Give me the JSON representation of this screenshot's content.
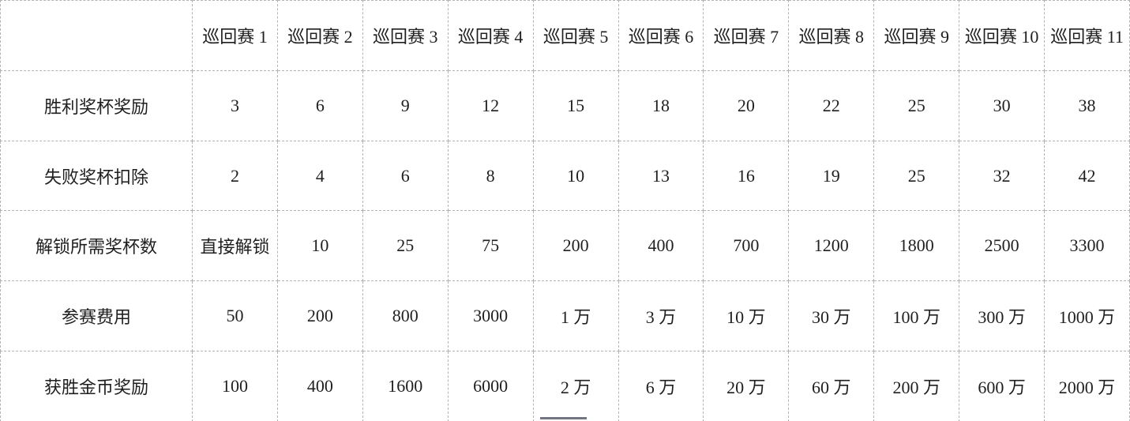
{
  "table": {
    "corner": "",
    "columns": [
      "巡回赛 1",
      "巡回赛 2",
      "巡回赛 3",
      "巡回赛 4",
      "巡回赛 5",
      "巡回赛 6",
      "巡回赛 7",
      "巡回赛 8",
      "巡回赛 9",
      "巡回赛 10",
      "巡回赛 11"
    ],
    "rows": [
      {
        "label": "胜利奖杯奖励",
        "values": [
          "3",
          "6",
          "9",
          "12",
          "15",
          "18",
          "20",
          "22",
          "25",
          "30",
          "38"
        ]
      },
      {
        "label": "失败奖杯扣除",
        "values": [
          "2",
          "4",
          "6",
          "8",
          "10",
          "13",
          "16",
          "19",
          "25",
          "32",
          "42"
        ]
      },
      {
        "label": "解锁所需奖杯数",
        "values": [
          "直接解锁",
          "10",
          "25",
          "75",
          "200",
          "400",
          "700",
          "1200",
          "1800",
          "2500",
          "3300"
        ]
      },
      {
        "label": "参赛费用",
        "values": [
          "50",
          "200",
          "800",
          "3000",
          "1 万",
          "3 万",
          "10 万",
          "30 万",
          "100 万",
          "300 万",
          "1000 万"
        ]
      },
      {
        "label": "获胜金币奖励",
        "values": [
          "100",
          "400",
          "1600",
          "6000",
          "2 万",
          "6 万",
          "20 万",
          "60 万",
          "200 万",
          "600 万",
          "2000 万"
        ]
      }
    ]
  },
  "colors": {
    "border": "#b3b3b3",
    "text": "#1f1f1f",
    "background": "#ffffff",
    "artifact": "#717680"
  }
}
